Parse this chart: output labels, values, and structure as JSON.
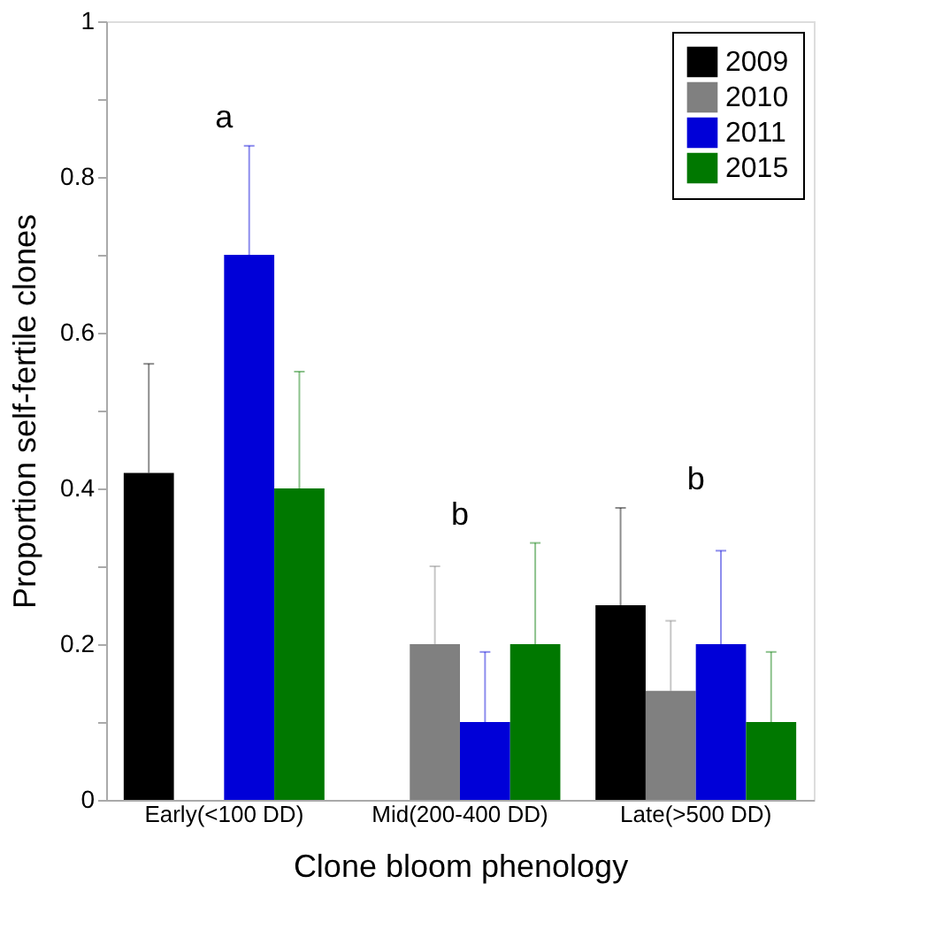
{
  "chart_data": {
    "type": "bar",
    "xlabel": "Clone bloom phenology",
    "ylabel": "Proportion self-fertile clones",
    "categories": [
      "Early(<100 DD)",
      "Mid(200-400 DD)",
      "Late(>500 DD)"
    ],
    "series": [
      {
        "name": "2009",
        "color": "#000000",
        "values": [
          0.42,
          null,
          0.25
        ],
        "errors": [
          [
            0.42,
            0.56
          ],
          null,
          [
            0.25,
            0.375
          ]
        ]
      },
      {
        "name": "2010",
        "color": "#808080",
        "values": [
          null,
          0.2,
          0.14
        ],
        "errors": [
          null,
          [
            0.2,
            0.3
          ],
          [
            0.14,
            0.23
          ]
        ]
      },
      {
        "name": "2011",
        "color": "#0000d8",
        "values": [
          0.7,
          0.1,
          0.2
        ],
        "errors": [
          [
            0.7,
            0.84
          ],
          [
            0.1,
            0.19
          ],
          [
            0.2,
            0.32
          ]
        ]
      },
      {
        "name": "2015",
        "color": "#007800",
        "values": [
          0.4,
          0.2,
          0.1
        ],
        "errors": [
          [
            0.4,
            0.55
          ],
          [
            0.2,
            0.33
          ],
          [
            0.1,
            0.19
          ]
        ]
      }
    ],
    "ylim": [
      0,
      1
    ],
    "yticks": [
      0,
      {
        "value": 0.1,
        "label": null
      },
      0.2,
      {
        "value": 0.3,
        "label": null
      },
      0.4,
      {
        "value": 0.5,
        "label": null
      },
      0.6,
      {
        "value": 0.7,
        "label": null
      },
      0.8,
      {
        "value": 0.9,
        "label": null
      },
      1
    ],
    "annotations": [
      "a",
      "b",
      "b"
    ],
    "legend": "top right",
    "grid": false
  }
}
